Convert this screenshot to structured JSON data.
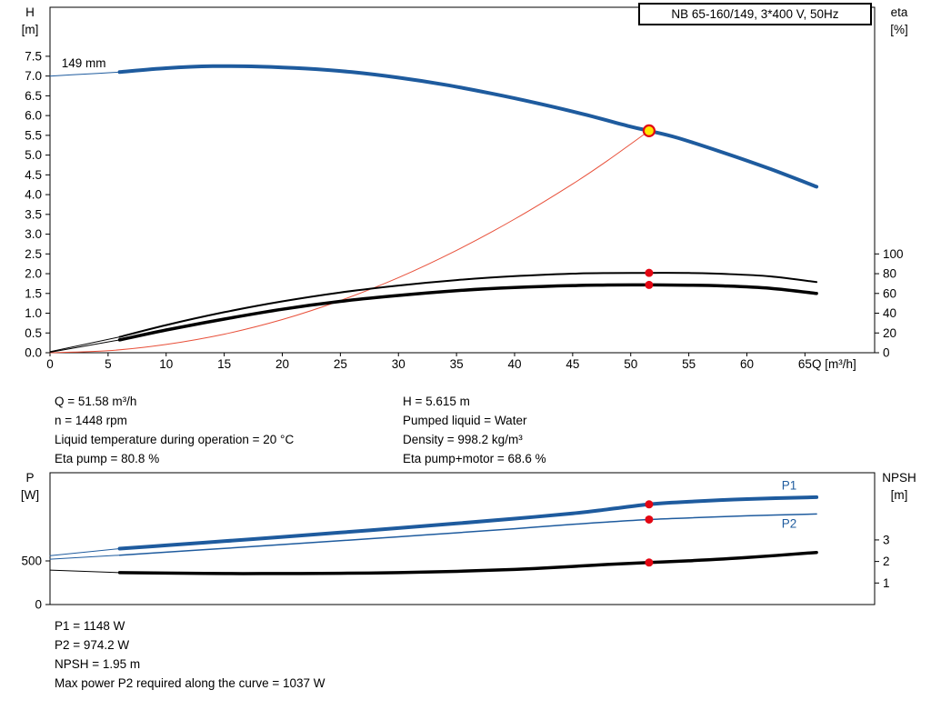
{
  "info_top": {
    "left": [
      "Q = 51.58 m³/h",
      "n = 1448 rpm",
      "Liquid temperature during operation = 20 °C",
      "Eta pump = 80.8 %"
    ],
    "right": [
      "H = 5.615 m",
      "Pumped liquid = Water",
      "Density = 998.2 kg/m³",
      "Eta pump+motor = 68.6 %"
    ]
  },
  "info_bottom": [
    "P1 = 1148 W",
    "P2 = 974.2 W",
    "NPSH = 1.95 m",
    "Max power P2 required along the curve = 1037 W"
  ],
  "colors": {
    "curve_blue": "#1e5b9e",
    "system_red": "#e8503a",
    "marker_red": "#e30613",
    "duty_yellow": "#ffe600",
    "black": "#000000"
  },
  "chart_data": [
    {
      "type": "line",
      "title": "NB 65-160/149, 3*400 V, 50Hz",
      "x": {
        "label": "Q [m³/h]",
        "min": 0,
        "max": 71,
        "ticks": [
          0,
          5,
          10,
          15,
          20,
          25,
          30,
          35,
          40,
          45,
          50,
          55,
          60,
          65
        ]
      },
      "y_left": {
        "label": "H",
        "unit": "[m]",
        "min": 0,
        "max": 8.74,
        "ticks": [
          "0.0",
          "0.5",
          "1.0",
          "1.5",
          "2.0",
          "2.5",
          "3.0",
          "3.5",
          "4.0",
          "4.5",
          "5.0",
          "5.5",
          "6.0",
          "6.5",
          "7.0",
          "7.5"
        ]
      },
      "y_right": {
        "label": "eta",
        "unit": "[%]",
        "min": 0,
        "max": 349.6,
        "ticks": [
          "0",
          "20",
          "40",
          "60",
          "80",
          "100"
        ]
      },
      "series": [
        {
          "name": "head-curve-lead",
          "axis": "left",
          "color": "#1e5b9e",
          "width": 1,
          "points": [
            [
              0,
              7.0
            ],
            [
              3,
              7.05
            ],
            [
              6,
              7.1
            ]
          ]
        },
        {
          "name": "head-curve",
          "axis": "left",
          "color": "#1e5b9e",
          "width": 4,
          "points": [
            [
              6,
              7.1
            ],
            [
              10,
              7.2
            ],
            [
              14,
              7.25
            ],
            [
              18,
              7.24
            ],
            [
              22,
              7.19
            ],
            [
              26,
              7.1
            ],
            [
              30,
              6.96
            ],
            [
              34,
              6.78
            ],
            [
              38,
              6.56
            ],
            [
              42,
              6.31
            ],
            [
              46,
              6.03
            ],
            [
              50,
              5.72
            ],
            [
              51.58,
              5.615
            ],
            [
              54,
              5.44
            ],
            [
              58,
              5.06
            ],
            [
              62,
              4.65
            ],
            [
              66,
              4.2
            ]
          ]
        },
        {
          "name": "system-curve",
          "axis": "left",
          "color": "#e8503a",
          "width": 1,
          "points": [
            [
              0,
              0
            ],
            [
              5,
              0.05
            ],
            [
              10,
              0.21
            ],
            [
              15,
              0.47
            ],
            [
              20,
              0.84
            ],
            [
              25,
              1.32
            ],
            [
              30,
              1.9
            ],
            [
              35,
              2.59
            ],
            [
              40,
              3.38
            ],
            [
              45,
              4.27
            ],
            [
              48,
              4.86
            ],
            [
              51.58,
              5.615
            ]
          ]
        },
        {
          "name": "eta-pump-lead",
          "axis": "right",
          "color": "#000000",
          "width": 1,
          "points": [
            [
              0,
              1
            ],
            [
              6,
              16
            ]
          ]
        },
        {
          "name": "eta-pump-curve",
          "axis": "right",
          "color": "#000000",
          "width": 2,
          "points": [
            [
              6,
              16
            ],
            [
              10,
              28
            ],
            [
              15,
              41
            ],
            [
              20,
              52
            ],
            [
              25,
              61
            ],
            [
              30,
              68
            ],
            [
              35,
              73.5
            ],
            [
              40,
              77.5
            ],
            [
              45,
              80
            ],
            [
              48,
              80.6
            ],
            [
              51.58,
              80.8
            ],
            [
              55,
              80.7
            ],
            [
              58,
              79.8
            ],
            [
              62,
              77.3
            ],
            [
              66,
              71.5
            ]
          ]
        },
        {
          "name": "eta-pump-motor-lead",
          "axis": "right",
          "color": "#000000",
          "width": 1,
          "points": [
            [
              0,
              0.5
            ],
            [
              6,
              13
            ]
          ]
        },
        {
          "name": "eta-pump-motor-curve",
          "axis": "right",
          "color": "#000000",
          "width": 3.5,
          "points": [
            [
              6,
              13
            ],
            [
              10,
              23
            ],
            [
              15,
              34
            ],
            [
              20,
              44
            ],
            [
              25,
              52
            ],
            [
              30,
              58
            ],
            [
              35,
              62.8
            ],
            [
              40,
              66
            ],
            [
              45,
              68
            ],
            [
              48,
              68.5
            ],
            [
              51.58,
              68.6
            ],
            [
              55,
              68.4
            ],
            [
              58,
              67.6
            ],
            [
              62,
              65.2
            ],
            [
              66,
              60
            ]
          ]
        }
      ],
      "annotations": [
        {
          "text": "149 mm",
          "x": 1.0,
          "y": 7.22,
          "axis": "left",
          "color": "#000000"
        }
      ],
      "markers": [
        {
          "style": "red",
          "axis": "right",
          "x": 51.58,
          "y": 80.8
        },
        {
          "style": "red",
          "axis": "right",
          "x": 51.58,
          "y": 68.6
        },
        {
          "style": "duty",
          "axis": "left",
          "x": 51.58,
          "y": 5.615
        }
      ]
    },
    {
      "type": "line",
      "title": "",
      "x": {
        "label": "",
        "min": 0,
        "max": 71,
        "ticks": []
      },
      "y_left": {
        "label": "P",
        "unit": "[W]",
        "min": 0,
        "max": 1510,
        "ticks": [
          "0",
          "500"
        ]
      },
      "y_right": {
        "label": "NPSH",
        "unit": "[m]",
        "min": 0,
        "max": 6.12,
        "ticks": [
          "1",
          "2",
          "3"
        ]
      },
      "series": [
        {
          "name": "p1-curve-lead",
          "axis": "left",
          "color": "#1e5b9e",
          "width": 1,
          "points": [
            [
              0,
              560
            ],
            [
              6,
              640
            ]
          ]
        },
        {
          "name": "p1-curve",
          "axis": "left",
          "color": "#1e5b9e",
          "width": 4,
          "points": [
            [
              6,
              640
            ],
            [
              10,
              678
            ],
            [
              15,
              726
            ],
            [
              20,
              775
            ],
            [
              25,
              825
            ],
            [
              30,
              876
            ],
            [
              35,
              929
            ],
            [
              40,
              984
            ],
            [
              45,
              1044
            ],
            [
              48,
              1090
            ],
            [
              51.58,
              1148
            ],
            [
              55,
              1178
            ],
            [
              60,
              1208
            ],
            [
              66,
              1230
            ]
          ]
        },
        {
          "name": "p2-curve-lead",
          "axis": "left",
          "color": "#1e5b9e",
          "width": 1,
          "points": [
            [
              0,
              520
            ],
            [
              6,
              565
            ]
          ]
        },
        {
          "name": "p2-curve",
          "axis": "left",
          "color": "#1e5b9e",
          "width": 1.5,
          "points": [
            [
              6,
              565
            ],
            [
              10,
              600
            ],
            [
              15,
              643
            ],
            [
              20,
              687
            ],
            [
              25,
              731
            ],
            [
              30,
              776
            ],
            [
              35,
              822
            ],
            [
              40,
              869
            ],
            [
              45,
              918
            ],
            [
              48,
              946
            ],
            [
              51.58,
              974.2
            ],
            [
              55,
              992
            ],
            [
              60,
              1016
            ],
            [
              66,
              1037
            ]
          ]
        },
        {
          "name": "npsh-curve-lead",
          "axis": "right",
          "color": "#000000",
          "width": 1,
          "points": [
            [
              0,
              1.6
            ],
            [
              6,
              1.48
            ]
          ]
        },
        {
          "name": "npsh-curve",
          "axis": "right",
          "color": "#000000",
          "width": 3.5,
          "points": [
            [
              6,
              1.48
            ],
            [
              10,
              1.46
            ],
            [
              15,
              1.44
            ],
            [
              20,
              1.44
            ],
            [
              25,
              1.45
            ],
            [
              30,
              1.48
            ],
            [
              35,
              1.54
            ],
            [
              40,
              1.63
            ],
            [
              45,
              1.77
            ],
            [
              48,
              1.86
            ],
            [
              51.58,
              1.95
            ],
            [
              55,
              2.03
            ],
            [
              60,
              2.18
            ],
            [
              66,
              2.42
            ]
          ]
        }
      ],
      "annotations": [
        {
          "text": "P1",
          "x": 63,
          "y": 1315,
          "axis": "left",
          "color": "#1e5b9e"
        },
        {
          "text": "P2",
          "x": 63,
          "y": 878,
          "axis": "left",
          "color": "#1e5b9e"
        }
      ],
      "markers": [
        {
          "style": "red",
          "axis": "left",
          "x": 51.58,
          "y": 1148
        },
        {
          "style": "red",
          "axis": "left",
          "x": 51.58,
          "y": 974.2
        },
        {
          "style": "red",
          "axis": "right",
          "x": 51.58,
          "y": 1.95
        }
      ]
    }
  ]
}
